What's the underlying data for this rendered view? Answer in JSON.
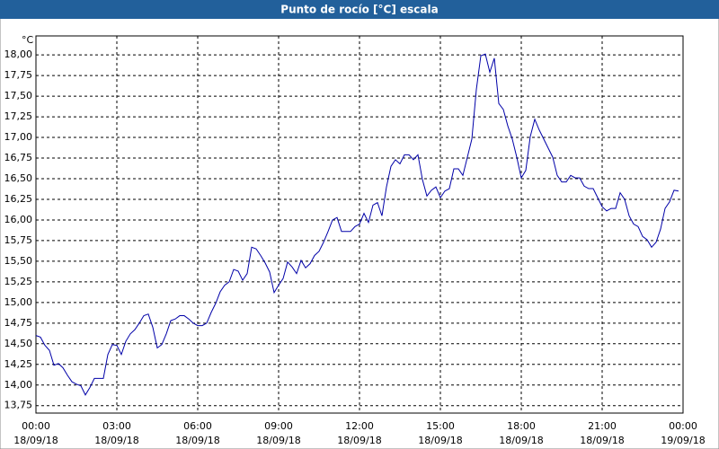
{
  "chart_data": {
    "type": "line",
    "title": "Punto de rocío [°C] escala",
    "unit_label": "°C",
    "x": [
      0,
      10,
      20,
      30,
      40,
      50,
      60,
      70,
      80,
      90,
      100,
      110,
      120,
      130,
      140,
      150,
      160,
      170,
      180,
      190,
      200,
      210,
      220,
      230,
      240,
      250,
      260,
      270,
      280,
      290,
      300,
      310,
      320,
      330,
      340,
      350,
      360,
      370,
      380,
      390,
      400,
      410,
      420,
      430,
      440,
      450,
      460,
      470,
      480,
      490,
      500,
      510,
      520,
      530,
      540,
      550,
      560,
      570,
      580,
      590,
      600,
      610,
      620,
      630,
      640,
      650,
      660,
      670,
      680,
      690,
      700,
      710,
      720,
      730,
      740,
      750,
      760,
      770,
      780,
      790,
      800,
      810,
      820,
      830,
      840,
      850,
      860,
      870,
      880,
      890,
      900,
      910,
      920,
      930,
      940,
      950,
      960,
      970,
      980,
      990,
      1000,
      1010,
      1020,
      1030,
      1040,
      1050,
      1060,
      1070,
      1080,
      1090,
      1100,
      1110,
      1120,
      1130,
      1140,
      1150,
      1160,
      1170,
      1180,
      1190,
      1200,
      1210,
      1220,
      1230,
      1240,
      1250,
      1260,
      1270,
      1280,
      1290,
      1300,
      1310,
      1320,
      1330,
      1340,
      1350,
      1360,
      1370,
      1380,
      1390,
      1400,
      1410,
      1420,
      1430
    ],
    "series": [
      {
        "color": "#0000a8",
        "values": [
          14.6,
          14.58,
          14.48,
          14.42,
          14.24,
          14.26,
          14.21,
          14.12,
          14.04,
          14.01,
          13.99,
          13.88,
          13.97,
          14.08,
          14.08,
          14.08,
          14.37,
          14.49,
          14.48,
          14.37,
          14.53,
          14.62,
          14.67,
          14.75,
          14.84,
          14.86,
          14.7,
          14.45,
          14.49,
          14.62,
          14.78,
          14.8,
          14.84,
          14.84,
          14.8,
          14.75,
          14.72,
          14.72,
          14.75,
          14.88,
          14.99,
          15.13,
          15.21,
          15.25,
          15.4,
          15.38,
          15.27,
          15.35,
          15.67,
          15.65,
          15.57,
          15.48,
          15.37,
          15.12,
          15.21,
          15.29,
          15.49,
          15.43,
          15.35,
          15.51,
          15.42,
          15.47,
          15.57,
          15.62,
          15.73,
          15.86,
          16.0,
          16.03,
          15.86,
          15.86,
          15.86,
          15.92,
          15.95,
          16.08,
          15.97,
          16.18,
          16.21,
          16.05,
          16.4,
          16.65,
          16.73,
          16.68,
          16.79,
          16.79,
          16.73,
          16.79,
          16.49,
          16.29,
          16.36,
          16.4,
          16.27,
          16.35,
          16.38,
          16.62,
          16.62,
          16.54,
          16.76,
          16.98,
          17.58,
          17.99,
          18.01,
          17.79,
          17.96,
          17.41,
          17.34,
          17.14,
          16.98,
          16.76,
          16.51,
          16.6,
          17.01,
          17.22,
          17.09,
          16.98,
          16.87,
          16.76,
          16.54,
          16.46,
          16.46,
          16.54,
          16.51,
          16.51,
          16.41,
          16.38,
          16.38,
          16.27,
          16.16,
          16.11,
          16.14,
          16.14,
          16.33,
          16.25,
          16.05,
          15.95,
          15.92,
          15.8,
          15.76,
          15.67,
          15.73,
          15.89,
          16.14,
          16.22,
          16.36,
          16.35
        ]
      }
    ],
    "xlim": [
      0,
      1440
    ],
    "xticks": [
      {
        "value": 0,
        "label": "00:00"
      },
      {
        "value": 180,
        "label": "03:00"
      },
      {
        "value": 360,
        "label": "06:00"
      },
      {
        "value": 540,
        "label": "09:00"
      },
      {
        "value": 720,
        "label": "12:00"
      },
      {
        "value": 900,
        "label": "15:00"
      },
      {
        "value": 1080,
        "label": "18:00"
      },
      {
        "value": 1260,
        "label": "21:00"
      },
      {
        "value": 1440,
        "label": "00:00"
      }
    ],
    "xtick_dates": [
      "18/09/18",
      "18/09/18",
      "18/09/18",
      "18/09/18",
      "18/09/18",
      "18/09/18",
      "18/09/18",
      "18/09/18",
      "19/09/18"
    ],
    "ylim": [
      13.66,
      18.23
    ],
    "yticks": [
      {
        "value": 13.75,
        "label": "13,75"
      },
      {
        "value": 14,
        "label": "14,00"
      },
      {
        "value": 14.25,
        "label": "14,25"
      },
      {
        "value": 14.5,
        "label": "14,50"
      },
      {
        "value": 14.75,
        "label": "14,75"
      },
      {
        "value": 15,
        "label": "15,00"
      },
      {
        "value": 15.25,
        "label": "15,25"
      },
      {
        "value": 15.5,
        "label": "15,50"
      },
      {
        "value": 15.75,
        "label": "15,75"
      },
      {
        "value": 16,
        "label": "16,00"
      },
      {
        "value": 16.25,
        "label": "16,25"
      },
      {
        "value": 16.5,
        "label": "16,50"
      },
      {
        "value": 16.75,
        "label": "16,75"
      },
      {
        "value": 17,
        "label": "17,00"
      },
      {
        "value": 17.25,
        "label": "17,25"
      },
      {
        "value": 17.5,
        "label": "17,50"
      },
      {
        "value": 17.75,
        "label": "17,75"
      },
      {
        "value": 18,
        "label": "18,00"
      }
    ],
    "grid": true
  }
}
